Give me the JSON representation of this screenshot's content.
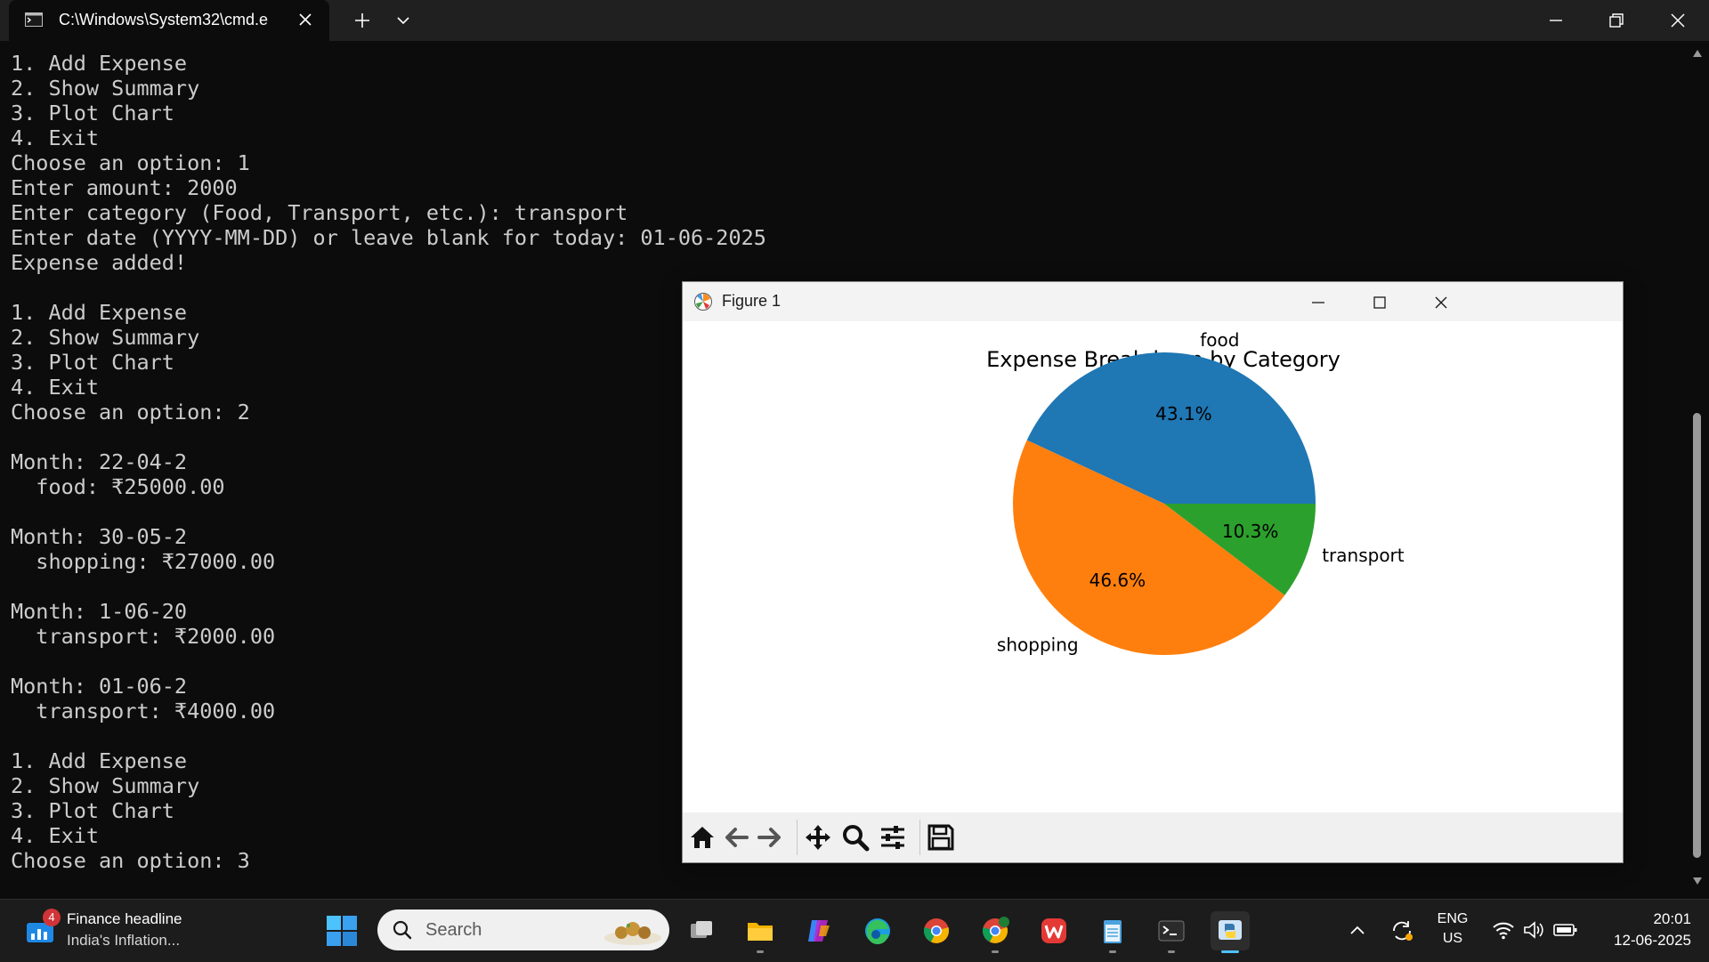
{
  "window": {
    "tab_title": "C:\\Windows\\System32\\cmd.e"
  },
  "terminal": {
    "lines": [
      "1. Add Expense",
      "2. Show Summary",
      "3. Plot Chart",
      "4. Exit",
      "Choose an option: 1",
      "Enter amount: 2000",
      "Enter category (Food, Transport, etc.): transport",
      "Enter date (YYYY-MM-DD) or leave blank for today: 01-06-2025",
      "Expense added!",
      "",
      "1. Add Expense",
      "2. Show Summary",
      "3. Plot Chart",
      "4. Exit",
      "Choose an option: 2",
      "",
      "Month: 22-04-2",
      "  food: ₹25000.00",
      "",
      "Month: 30-05-2",
      "  shopping: ₹27000.00",
      "",
      "Month: 1-06-20",
      "  transport: ₹2000.00",
      "",
      "Month: 01-06-2",
      "  transport: ₹4000.00",
      "",
      "1. Add Expense",
      "2. Show Summary",
      "3. Plot Chart",
      "4. Exit",
      "Choose an option: 3"
    ]
  },
  "figure": {
    "window_title": "Figure 1"
  },
  "chart_data": {
    "type": "pie",
    "title": "Expense Breakdown by Category",
    "categories": [
      "food",
      "shopping",
      "transport"
    ],
    "values": [
      25000,
      27000,
      6000
    ],
    "percent_labels": [
      "43.1%",
      "46.6%",
      "10.3%"
    ],
    "colors": [
      "#1f77b4",
      "#ff7f0e",
      "#2ca02c"
    ],
    "start_angle": 0,
    "direction": "counterclockwise"
  },
  "taskbar": {
    "widget": {
      "badge": "4",
      "title": "Finance headline",
      "subtitle": "India's Inflation..."
    },
    "search_placeholder": "Search",
    "lang_top": "ENG",
    "lang_bottom": "US",
    "time": "20:01",
    "date": "12-06-2025"
  }
}
